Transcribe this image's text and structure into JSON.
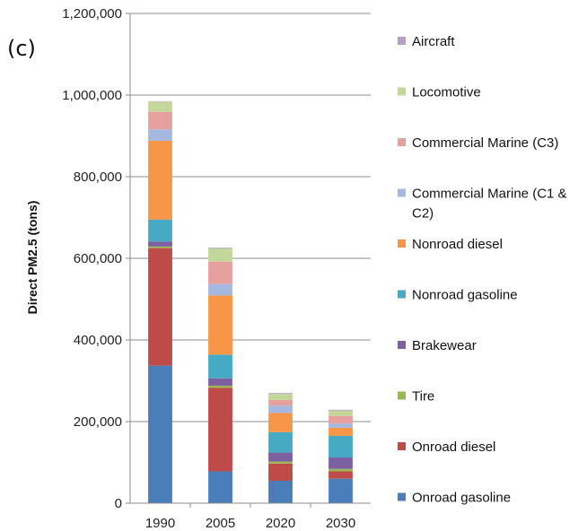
{
  "panel_label": "(c)",
  "chart_data": {
    "type": "bar",
    "stacked": true,
    "title": "",
    "xlabel": "",
    "ylabel": "Direct PM2.5 (tons)",
    "ylim": [
      0,
      1200000
    ],
    "yticks": [
      0,
      200000,
      400000,
      600000,
      800000,
      1000000,
      1200000
    ],
    "ytick_labels": [
      "0",
      "200,000",
      "400,000",
      "600,000",
      "800,000",
      "1,000,000",
      "1,200,000"
    ],
    "grid": true,
    "legend_position": "right",
    "categories": [
      "1990",
      "2005",
      "2020",
      "2030"
    ],
    "series": [
      {
        "name": "Onroad gasoline",
        "color": "#4a7ebb",
        "values": [
          337000,
          78000,
          55000,
          60000
        ]
      },
      {
        "name": "Onroad diesel",
        "color": "#be4b48",
        "values": [
          288000,
          205000,
          42000,
          18000
        ]
      },
      {
        "name": "Tire",
        "color": "#98b954",
        "values": [
          4000,
          5000,
          5000,
          6000
        ]
      },
      {
        "name": "Brakewear",
        "color": "#7d60a0",
        "values": [
          12000,
          18000,
          22000,
          28000
        ]
      },
      {
        "name": "Nonroad gasoline",
        "color": "#46aac4",
        "values": [
          54000,
          58000,
          50000,
          53000
        ]
      },
      {
        "name": "Nonroad diesel",
        "color": "#f79646",
        "values": [
          193000,
          145000,
          47000,
          20000
        ]
      },
      {
        "name": "Commercial Marine (C1 & C2)",
        "color": "#a5b8e0",
        "values": [
          28000,
          28000,
          18000,
          10000
        ]
      },
      {
        "name": "Commercial Marine (C3)",
        "color": "#e6a09e",
        "values": [
          43000,
          55000,
          14000,
          19000
        ]
      },
      {
        "name": "Locomotive",
        "color": "#c4d79b",
        "values": [
          25000,
          32000,
          15000,
          13000
        ]
      },
      {
        "name": "Aircraft",
        "color": "#b3a2c7",
        "values": [
          1000,
          2000,
          2000,
          2000
        ]
      }
    ]
  }
}
